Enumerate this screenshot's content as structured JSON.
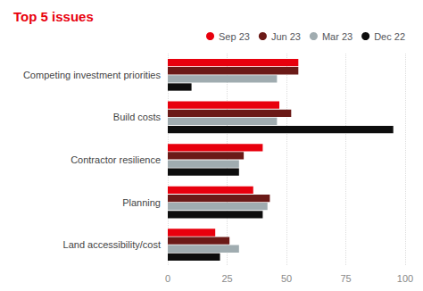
{
  "chart_data": {
    "type": "bar",
    "title": "Top 5 issues",
    "orientation": "horizontal",
    "categories": [
      "Competing investment priorities",
      "Build costs",
      "Contractor resilience",
      "Planning",
      "Land accessibility/cost"
    ],
    "series": [
      {
        "name": "Sep 23",
        "color": "#e8000d",
        "values": [
          55,
          47,
          40,
          36,
          20
        ]
      },
      {
        "name": "Jun 23",
        "color": "#6b1a17",
        "values": [
          55,
          52,
          32,
          43,
          26
        ]
      },
      {
        "name": "Mar 23",
        "color": "#a0acb0",
        "values": [
          46,
          46,
          30,
          42,
          30
        ]
      },
      {
        "name": "Dec 22",
        "color": "#0d0d0d",
        "values": [
          10,
          95,
          30,
          40,
          22
        ]
      }
    ],
    "xlim": [
      0,
      100
    ],
    "xticks": [
      0,
      25,
      50,
      75,
      100
    ],
    "grid": true,
    "legend": "top"
  }
}
